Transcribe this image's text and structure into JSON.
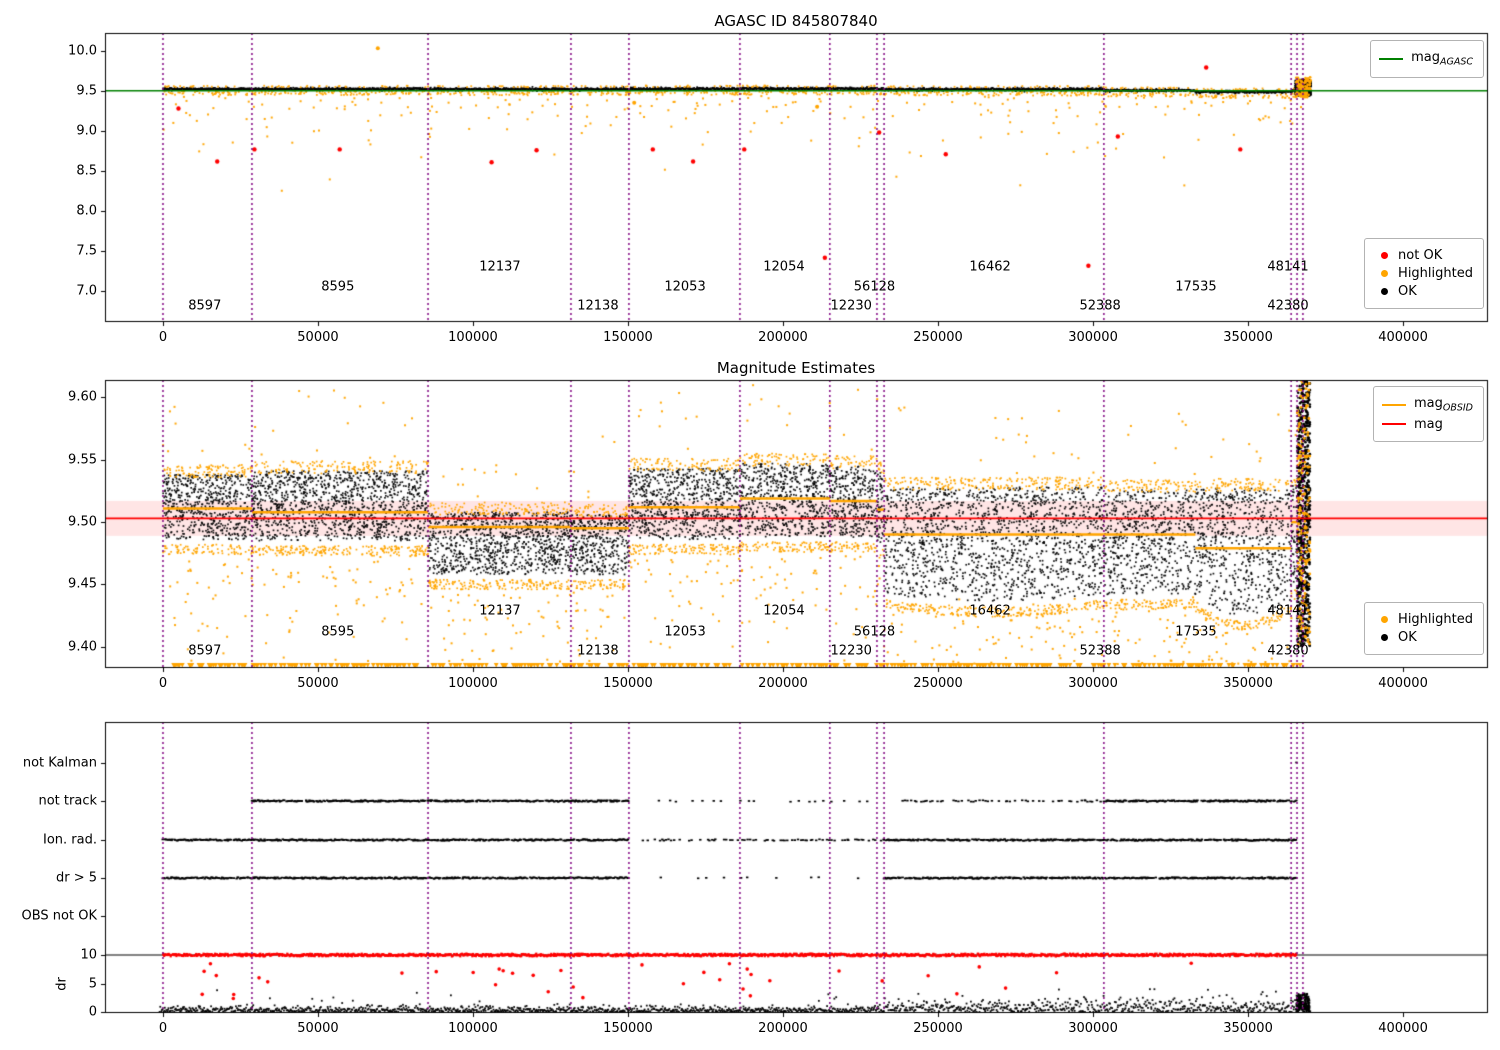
{
  "colors": {
    "purple": "#800080",
    "green": "#008000",
    "red": "#ff0000",
    "orange": "#ffa500",
    "black": "#000000",
    "pink_band": "rgba(255,0,0,0.10)"
  },
  "xticks": {
    "values": [
      0,
      50000,
      100000,
      150000,
      200000,
      250000,
      300000,
      350000,
      400000
    ],
    "labels": [
      "0",
      "50000",
      "100000",
      "150000",
      "200000",
      "250000",
      "300000",
      "350000",
      "400000"
    ]
  },
  "chart_data": [
    {
      "id": "p1",
      "type": "scatter",
      "title": "AGASC ID 845807840",
      "xlim": [
        -18700,
        427400
      ],
      "ylim": [
        6.62,
        10.22
      ],
      "yticks": {
        "values": [
          7.0,
          7.5,
          8.0,
          8.5,
          9.0,
          9.5,
          10.0
        ],
        "labels": [
          "7.0",
          "7.5",
          "8.0",
          "8.5",
          "9.0",
          "9.5",
          "10.0"
        ]
      },
      "hline": {
        "y": 9.5,
        "color_key": "green"
      },
      "vlines": [
        0,
        28700,
        85500,
        131600,
        150300,
        186100,
        215100,
        230300,
        232600,
        303500,
        363900,
        365800,
        367700
      ],
      "legend_line": [
        {
          "label": "mag",
          "sub": "AGASC",
          "color_key": "green"
        }
      ],
      "legend_dots": [
        {
          "label": "not OK",
          "color_key": "red"
        },
        {
          "label": "Highlighted",
          "color_key": "orange"
        },
        {
          "label": "OK",
          "color_key": "black"
        }
      ],
      "band_segments": [
        {
          "x0": 0,
          "x1": 28700,
          "c": 9.523,
          "hw": 0.016
        },
        {
          "x0": 28700,
          "x1": 85500,
          "c": 9.523,
          "hw": 0.016
        },
        {
          "x0": 85500,
          "x1": 131600,
          "c": 9.52,
          "hw": 0.016
        },
        {
          "x0": 131600,
          "x1": 150300,
          "c": 9.52,
          "hw": 0.016
        },
        {
          "x0": 150300,
          "x1": 186100,
          "c": 9.525,
          "hw": 0.016
        },
        {
          "x0": 186100,
          "x1": 215100,
          "c": 9.527,
          "hw": 0.016
        },
        {
          "x0": 215100,
          "x1": 230300,
          "c": 9.527,
          "hw": 0.016
        },
        {
          "x0": 230300,
          "x1": 232600,
          "c": 9.525,
          "hw": 0.016
        },
        {
          "x0": 232600,
          "x1": 303500,
          "c": 9.518,
          "hw": 0.018
        },
        {
          "x0": 303500,
          "x1": 333000,
          "c": 9.504,
          "hw": 0.016
        },
        {
          "x0": 333000,
          "x1": 363900,
          "c": 9.487,
          "hw": 0.018
        },
        {
          "x0": 363900,
          "x1": 365800,
          "c": 9.5,
          "hw": 0.02
        },
        {
          "x0": 365800,
          "x1": 367700,
          "c": 9.53,
          "hw": 0.03
        }
      ],
      "scatter_params": {
        "band_step": 130,
        "fringe_div": 420,
        "deep_div": 1700
      },
      "red_points": [
        [
          5000,
          9.28
        ],
        [
          17500,
          8.62
        ],
        [
          29500,
          8.77
        ],
        [
          57000,
          8.77
        ],
        [
          106000,
          8.61
        ],
        [
          120500,
          8.76
        ],
        [
          158000,
          8.77
        ],
        [
          171000,
          8.62
        ],
        [
          187500,
          8.77
        ],
        [
          213500,
          7.42
        ],
        [
          231000,
          8.98
        ],
        [
          252500,
          8.71
        ],
        [
          298500,
          7.32
        ],
        [
          308000,
          8.93
        ],
        [
          336500,
          9.79
        ],
        [
          347500,
          8.77
        ]
      ],
      "orange_outliers": [
        [
          69300,
          10.03
        ],
        [
          152000,
          9.35
        ],
        [
          211000,
          9.3
        ]
      ],
      "end_cluster": {
        "x0": 365300,
        "x1": 370200,
        "y0": 9.44,
        "y1": 9.64,
        "n_black": 380,
        "n_orange": 90
      },
      "obsid_labels": [
        {
          "id": "8597",
          "x": 13500,
          "y": 6.82
        },
        {
          "id": "8595",
          "x": 56400,
          "y": 7.05
        },
        {
          "id": "12137",
          "x": 108700,
          "y": 7.31
        },
        {
          "id": "12138",
          "x": 140300,
          "y": 6.82
        },
        {
          "id": "12053",
          "x": 168400,
          "y": 7.05
        },
        {
          "id": "12054",
          "x": 200300,
          "y": 7.31
        },
        {
          "id": "12230",
          "x": 222000,
          "y": 6.82
        },
        {
          "id": "56128",
          "x": 229500,
          "y": 7.05
        },
        {
          "id": "16462",
          "x": 266800,
          "y": 7.31
        },
        {
          "id": "52388",
          "x": 302300,
          "y": 6.82
        },
        {
          "id": "17535",
          "x": 333200,
          "y": 7.05
        },
        {
          "id": "48141",
          "x": 362900,
          "y": 7.31
        },
        {
          "id": "42380",
          "x": 362900,
          "y": 6.82
        }
      ]
    },
    {
      "id": "p2",
      "type": "scatter",
      "title": "Magnitude Estimates",
      "ylim": [
        9.383,
        9.614
      ],
      "yticks": {
        "values": [
          9.4,
          9.45,
          9.5,
          9.55,
          9.6
        ],
        "labels": [
          "9.40",
          "9.45",
          "9.50",
          "9.55",
          "9.60"
        ]
      },
      "mag_line": {
        "y": 9.503,
        "band": [
          9.489,
          9.517
        ],
        "color_key": "red"
      },
      "vlines": [
        0,
        28700,
        85500,
        131600,
        150300,
        186100,
        215100,
        230300,
        232600,
        303500,
        363900,
        365800,
        367700
      ],
      "legend_line": [
        {
          "label": "mag",
          "sub": "OBSID",
          "color_key": "orange"
        },
        {
          "label": "mag",
          "sub": "",
          "color_key": "red"
        }
      ],
      "legend_dots": [
        {
          "label": "Highlighted",
          "color_key": "orange"
        },
        {
          "label": "OK",
          "color_key": "black"
        }
      ],
      "segments": [
        {
          "id": "8597",
          "x0": 0,
          "x1": 28700,
          "lo": 9.486,
          "hi": 9.538,
          "mag": 9.511
        },
        {
          "id": "8595",
          "x0": 28700,
          "x1": 85500,
          "lo": 9.485,
          "hi": 9.541,
          "mag": 9.508
        },
        {
          "id": "12137",
          "x0": 85500,
          "x1": 131600,
          "lo": 9.458,
          "hi": 9.508,
          "mag": 9.496
        },
        {
          "id": "12138",
          "x0": 131600,
          "x1": 150300,
          "lo": 9.458,
          "hi": 9.506,
          "mag": 9.495
        },
        {
          "id": "12053",
          "x0": 150300,
          "x1": 186100,
          "lo": 9.486,
          "hi": 9.543,
          "mag": 9.512
        },
        {
          "id": "12054",
          "x0": 186100,
          "x1": 215100,
          "lo": 9.488,
          "hi": 9.547,
          "mag": 9.519
        },
        {
          "id": "12230",
          "x0": 215100,
          "x1": 230300,
          "lo": 9.488,
          "hi": 9.545,
          "mag": 9.517
        },
        {
          "id": "56128",
          "x0": 230300,
          "x1": 232600,
          "lo": 9.483,
          "hi": 9.54,
          "mag": 9.51
        },
        {
          "id": "16462",
          "x0": 232600,
          "x1": 303500,
          "lo": 9.442,
          "hi": 9.528,
          "mag": 9.49,
          "dip": 0.006
        },
        {
          "id": "52388",
          "x0": 303500,
          "x1": 333000,
          "lo": 9.442,
          "hi": 9.526,
          "mag": 9.49
        },
        {
          "id": "17535",
          "x0": 333000,
          "x1": 363900,
          "lo": 9.438,
          "hi": 9.527,
          "mag": 9.479,
          "dip": 0.013
        },
        {
          "id": "42380",
          "x0": 363900,
          "x1": 365800,
          "lo": 9.45,
          "hi": 9.53,
          "mag": 9.5
        },
        {
          "id": "48141",
          "x0": 365800,
          "x1": 367700,
          "lo": 9.42,
          "hi": 9.61,
          "mag": 9.553
        }
      ],
      "scatter_params": {
        "black_div": 48,
        "fringe_div": 150,
        "below_div": 850,
        "above_div": 3800,
        "tri_div": 780
      },
      "tri_y": 9.3855,
      "end_cluster": {
        "x0": 365900,
        "x1": 370000,
        "y0": 9.4,
        "y1": 9.613,
        "n_black": 650,
        "n_orange": 170,
        "mag_seg": [
          365800,
          370300,
          9.553
        ]
      },
      "obsid_labels": [
        {
          "id": "8597",
          "x": 13500,
          "y": 9.397
        },
        {
          "id": "8595",
          "x": 56400,
          "y": 9.412
        },
        {
          "id": "12137",
          "x": 108700,
          "y": 9.429
        },
        {
          "id": "12138",
          "x": 140300,
          "y": 9.397
        },
        {
          "id": "12053",
          "x": 168400,
          "y": 9.412
        },
        {
          "id": "12054",
          "x": 200300,
          "y": 9.429
        },
        {
          "id": "12230",
          "x": 222000,
          "y": 9.397
        },
        {
          "id": "56128",
          "x": 229500,
          "y": 9.412
        },
        {
          "id": "16462",
          "x": 266800,
          "y": 9.429
        },
        {
          "id": "52388",
          "x": 302300,
          "y": 9.397
        },
        {
          "id": "17535",
          "x": 333200,
          "y": 9.412
        },
        {
          "id": "48141",
          "x": 362900,
          "y": 9.429
        },
        {
          "id": "42380",
          "x": 362900,
          "y": 9.397
        }
      ]
    },
    {
      "id": "p3",
      "type": "rows",
      "rows": [
        {
          "label": "not Kalman",
          "f": 0.859,
          "spans": [
            [
              365200,
              366600,
              "sparse"
            ]
          ]
        },
        {
          "label": "not track",
          "f": 0.7285,
          "spans": [
            [
              16500,
              19500,
              "sparse"
            ],
            [
              28700,
              150300,
              "dense"
            ],
            [
              160000,
              232600,
              "sparse"
            ],
            [
              236000,
              303500,
              "medium"
            ],
            [
              303500,
              365800,
              "dense"
            ]
          ]
        },
        {
          "label": "Ion. rad.",
          "f": 0.5945,
          "spans": [
            [
              0,
              150300,
              "dense"
            ],
            [
              155000,
              232600,
              "medium"
            ],
            [
              232600,
              365800,
              "dense"
            ]
          ]
        },
        {
          "label": "dr > 5",
          "f": 0.4639,
          "spans": [
            [
              0,
              150300,
              "dense"
            ],
            [
              158000,
              232600,
              "sparse"
            ],
            [
              232600,
              365800,
              "dense"
            ]
          ]
        },
        {
          "label": "OBS not OK",
          "f": 0.3333,
          "spans": []
        }
      ],
      "dr_axis": {
        "label": "dr",
        "f0": 0.0034,
        "fscale": 0.0196,
        "hline_f": 0.1993,
        "ticks": [
          {
            "label": "10",
            "f": 0.1993
          },
          {
            "label": "5",
            "f": 0.0997
          },
          {
            "label": "0",
            "f": 0.0034
          }
        ]
      },
      "dr_red10_spans": [
        [
          0,
          365800,
          "dense"
        ]
      ],
      "dr_black": {
        "step": 230,
        "amp_lo": 0.5,
        "amp_hi": 1.0,
        "boundary": 232600,
        "clip": 4.2,
        "x_min": -1000,
        "x_max": 370000
      },
      "dr_red_scatter": {
        "n": 38,
        "x_min": 12000,
        "x_max": 335000,
        "y_min": 2.2,
        "y_max": 8.6
      },
      "end_cluster": {
        "x0": 365600,
        "x1": 369800,
        "n": 150,
        "y_max": 3.2
      },
      "vlines": [
        0,
        28700,
        85500,
        131600,
        150300,
        186100,
        215100,
        230300,
        232600,
        303500,
        363900,
        365800,
        367700
      ],
      "densities": {
        "dense": {
          "step": 300,
          "p": 0.85
        },
        "medium": {
          "step": 650,
          "p": 0.6
        },
        "sparse": {
          "step": 2800,
          "p": 0.5
        }
      }
    }
  ]
}
